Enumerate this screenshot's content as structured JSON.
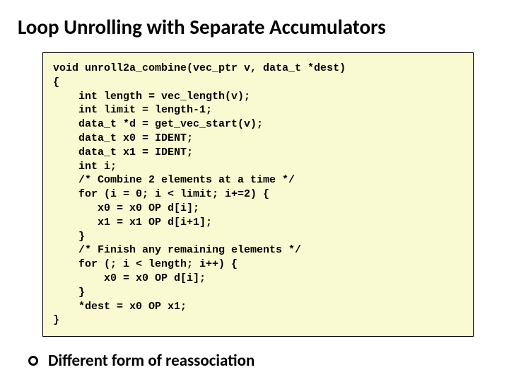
{
  "title": "Loop Unrolling with Separate Accumulators",
  "code": "void unroll2a_combine(vec_ptr v, data_t *dest)\n{\n    int length = vec_length(v);\n    int limit = length-1;\n    data_t *d = get_vec_start(v);\n    data_t x0 = IDENT;\n    data_t x1 = IDENT;\n    int i;\n    /* Combine 2 elements at a time */\n    for (i = 0; i < limit; i+=2) {\n       x0 = x0 OP d[i];\n       x1 = x1 OP d[i+1];\n    }\n    /* Finish any remaining elements */\n    for (; i < length; i++) {\n        x0 = x0 OP d[i];\n    }\n    *dest = x0 OP x1;\n}",
  "bullet_text": "Different form of reassociation",
  "colors": {
    "code_bg": "#fafad2",
    "text": "#000000",
    "page_bg": "#ffffff"
  },
  "fonts": {
    "title_size": 29,
    "code_size": 15,
    "bullet_size": 23
  }
}
